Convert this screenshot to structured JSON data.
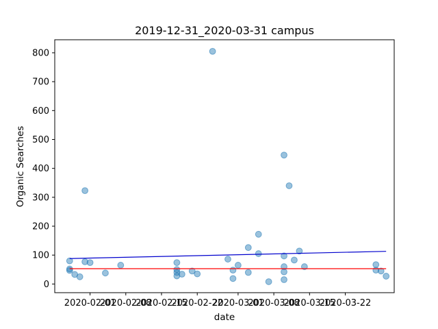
{
  "chart_data": {
    "type": "scatter",
    "title": "2019-12-31_2020-03-31 campus",
    "xlabel": "date",
    "ylabel": "Organic Searches",
    "x_ticks": [
      "2020-02-01",
      "2020-02-08",
      "2020-02-15",
      "2020-02-22",
      "2020-03-01",
      "2020-03-08",
      "2020-03-15",
      "2020-03-22"
    ],
    "y_ticks": [
      0,
      100,
      200,
      300,
      400,
      500,
      600,
      700,
      800
    ],
    "xlim": [
      "2020-01-25T02:00",
      "2020-03-31T14:00"
    ],
    "ylim": [
      -30,
      845
    ],
    "grid": false,
    "colors": {
      "points": "#1f77b4",
      "trend": "#0000cd",
      "mean": "#ff0000"
    },
    "points": [
      {
        "x": "2020-01-28",
        "y": 80
      },
      {
        "x": "2020-01-28",
        "y": 52
      },
      {
        "x": "2020-01-28",
        "y": 47
      },
      {
        "x": "2020-01-29",
        "y": 33
      },
      {
        "x": "2020-01-30",
        "y": 25
      },
      {
        "x": "2020-01-31",
        "y": 323
      },
      {
        "x": "2020-01-31",
        "y": 77
      },
      {
        "x": "2020-02-01",
        "y": 74
      },
      {
        "x": "2020-02-04",
        "y": 38
      },
      {
        "x": "2020-02-07",
        "y": 65
      },
      {
        "x": "2020-02-18",
        "y": 74
      },
      {
        "x": "2020-02-18",
        "y": 50
      },
      {
        "x": "2020-02-18",
        "y": 40
      },
      {
        "x": "2020-02-18",
        "y": 28
      },
      {
        "x": "2020-02-19",
        "y": 34
      },
      {
        "x": "2020-02-21",
        "y": 45
      },
      {
        "x": "2020-02-22",
        "y": 35
      },
      {
        "x": "2020-02-25",
        "y": 805
      },
      {
        "x": "2020-02-28",
        "y": 86
      },
      {
        "x": "2020-02-29",
        "y": 48
      },
      {
        "x": "2020-02-29",
        "y": 19
      },
      {
        "x": "2020-03-01",
        "y": 65
      },
      {
        "x": "2020-03-03",
        "y": 126
      },
      {
        "x": "2020-03-03",
        "y": 40
      },
      {
        "x": "2020-03-05",
        "y": 172
      },
      {
        "x": "2020-03-05",
        "y": 105
      },
      {
        "x": "2020-03-07",
        "y": 8
      },
      {
        "x": "2020-03-10",
        "y": 446
      },
      {
        "x": "2020-03-10",
        "y": 97
      },
      {
        "x": "2020-03-10",
        "y": 60
      },
      {
        "x": "2020-03-10",
        "y": 42
      },
      {
        "x": "2020-03-10",
        "y": 15
      },
      {
        "x": "2020-03-11",
        "y": 340
      },
      {
        "x": "2020-03-12",
        "y": 83
      },
      {
        "x": "2020-03-13",
        "y": 114
      },
      {
        "x": "2020-03-14",
        "y": 60
      },
      {
        "x": "2020-03-28",
        "y": 67
      },
      {
        "x": "2020-03-28",
        "y": 48
      },
      {
        "x": "2020-03-29",
        "y": 45
      },
      {
        "x": "2020-03-30",
        "y": 27
      }
    ],
    "trend_line": {
      "x": [
        "2020-01-28",
        "2020-03-30"
      ],
      "y": [
        88,
        113
      ]
    },
    "mean_line": {
      "x": [
        "2020-01-28",
        "2020-03-30"
      ],
      "y": [
        53,
        53
      ]
    }
  }
}
